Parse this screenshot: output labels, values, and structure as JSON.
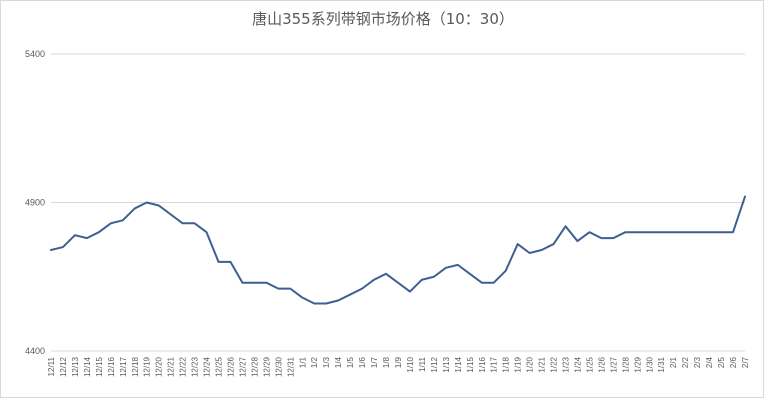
{
  "chart_data": {
    "type": "line",
    "title": "唐山355系列带钢市场价格（10：30）",
    "xlabel": "",
    "ylabel": "",
    "ylim": [
      4400,
      5400
    ],
    "yticks": [
      4400,
      4900,
      5400
    ],
    "grid": true,
    "legend": "none",
    "line_color": "#3f5f92",
    "categories": [
      "12/11",
      "12/12",
      "12/13",
      "12/14",
      "12/15",
      "12/16",
      "12/17",
      "12/18",
      "12/19",
      "12/20",
      "12/21",
      "12/22",
      "12/23",
      "12/24",
      "12/25",
      "12/26",
      "12/27",
      "12/28",
      "12/29",
      "12/30",
      "12/31",
      "1/1",
      "1/2",
      "1/3",
      "1/4",
      "1/5",
      "1/6",
      "1/7",
      "1/8",
      "1/9",
      "1/10",
      "1/11",
      "1/12",
      "1/13",
      "1/14",
      "1/15",
      "1/16",
      "1/17",
      "1/18",
      "1/19",
      "1/20",
      "1/21",
      "1/22",
      "1/23",
      "1/24",
      "1/25",
      "1/26",
      "1/27",
      "1/28",
      "1/29",
      "1/30",
      "1/31",
      "2/1",
      "2/2",
      "2/3",
      "2/4",
      "2/5",
      "2/6",
      "2/7"
    ],
    "values": [
      4740,
      4750,
      4790,
      4780,
      4800,
      4830,
      4840,
      4880,
      4900,
      4890,
      4860,
      4830,
      4830,
      4800,
      4700,
      4700,
      4630,
      4630,
      4630,
      4610,
      4610,
      4580,
      4560,
      4560,
      4570,
      4590,
      4610,
      4640,
      4660,
      4630,
      4600,
      4640,
      4650,
      4680,
      4690,
      4660,
      4630,
      4630,
      4670,
      4760,
      4730,
      4740,
      4760,
      4820,
      4770,
      4800,
      4780,
      4780,
      4800,
      4800,
      4800,
      4800,
      4800,
      4800,
      4800,
      4800,
      4800,
      4800,
      4920
    ]
  }
}
